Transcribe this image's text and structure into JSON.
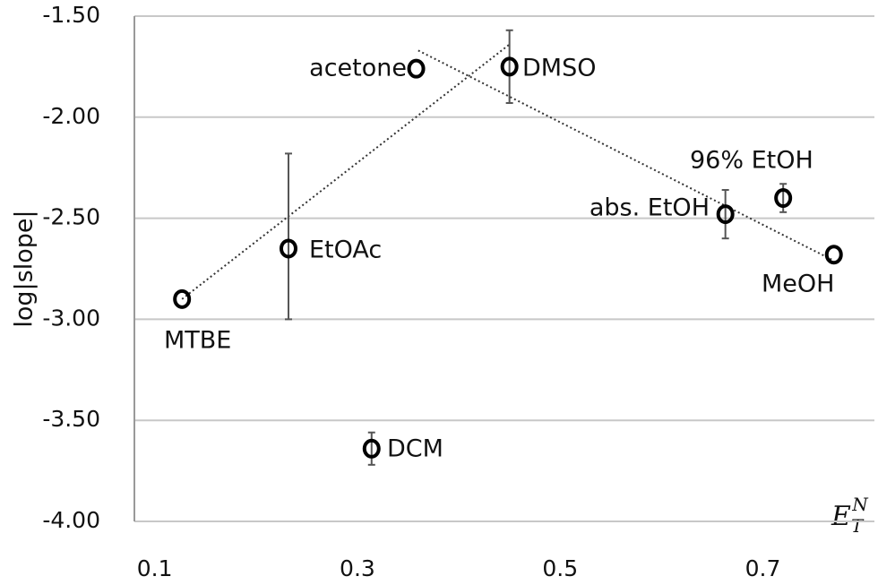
{
  "chart_data": {
    "type": "scatter",
    "y_label": "log|slope|",
    "x_label": {
      "base": "E",
      "sub": "T",
      "sup": "N"
    },
    "labels": [
      "MTBE",
      "EtOAc",
      "acetone",
      "DMSO",
      "DCM",
      "abs. EtOH",
      "96% EtOH",
      "MeOH"
    ],
    "x": [
      0.127,
      0.232,
      0.358,
      0.45,
      0.314,
      0.663,
      0.72,
      0.77
    ],
    "y": [
      -2.9,
      -2.65,
      -1.76,
      -1.75,
      -3.64,
      -2.48,
      -2.4,
      -2.68
    ],
    "yerr_plus": [
      null,
      0.47,
      null,
      0.18,
      0.08,
      0.12,
      0.07,
      null
    ],
    "yerr_minus": [
      null,
      0.35,
      null,
      0.18,
      0.08,
      0.12,
      0.07,
      null
    ],
    "trendlines": [
      {
        "x": [
          0.127,
          0.45
        ],
        "y": [
          -2.9,
          -1.64
        ]
      },
      {
        "x": [
          0.36,
          0.77
        ],
        "y": [
          -1.67,
          -2.71
        ]
      }
    ],
    "color": "#000000",
    "xlim": [
      0.08,
      0.81
    ],
    "ylim": [
      -4,
      -1.5
    ],
    "xticks": [
      0.1,
      0.3,
      0.5,
      0.7
    ],
    "yticks": [
      {
        "value": -1.5,
        "label": "-1.50"
      },
      {
        "value": -2,
        "label": "-2.00"
      },
      {
        "value": -2.5,
        "label": "-2.50"
      },
      {
        "value": -3,
        "label": "-3.00"
      },
      {
        "value": -3.5,
        "label": "-3.50"
      },
      {
        "value": -4,
        "label": "-4.00"
      }
    ],
    "grid": true
  }
}
